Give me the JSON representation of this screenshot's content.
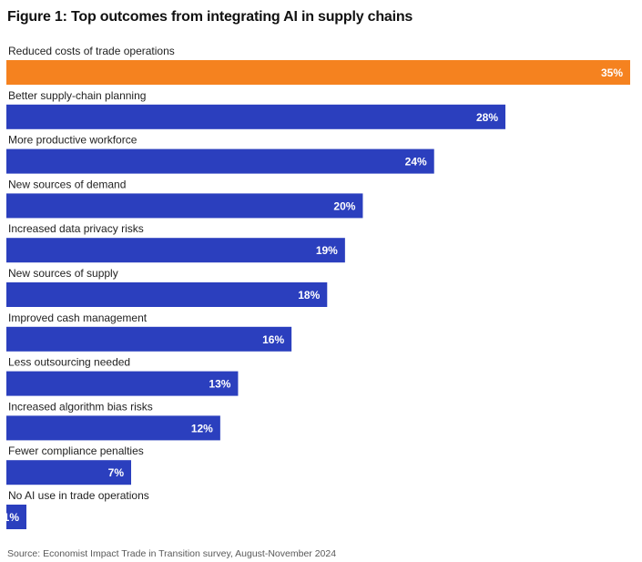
{
  "chart_data": {
    "type": "bar",
    "orientation": "horizontal",
    "title": "Figure 1: Top outcomes from integrating AI in supply chains",
    "categories": [
      "Reduced costs of trade operations",
      "Better supply-chain planning",
      "More productive workforce",
      "New sources of demand",
      "Increased data privacy risks",
      "New sources of supply",
      "Improved cash management",
      "Less outsourcing needed",
      "Increased algorithm bias risks",
      "Fewer compliance penalties",
      "No AI use in trade operations"
    ],
    "values": [
      35,
      28,
      24,
      20,
      19,
      18,
      16,
      13,
      12,
      7,
      1
    ],
    "value_labels": [
      "35%",
      "28%",
      "24%",
      "20%",
      "19%",
      "18%",
      "16%",
      "13%",
      "12%",
      "7%",
      "1%"
    ],
    "xlim": [
      0,
      35
    ],
    "grid": false,
    "legend": "none",
    "highlight_index": 0,
    "colors": {
      "highlight": "#F5821F",
      "bar": "#2B3FBE",
      "label_text": "#ffffff",
      "category_text": "#222222"
    },
    "source": "Source: Economist Impact Trade in Transition survey, August-November 2024"
  }
}
